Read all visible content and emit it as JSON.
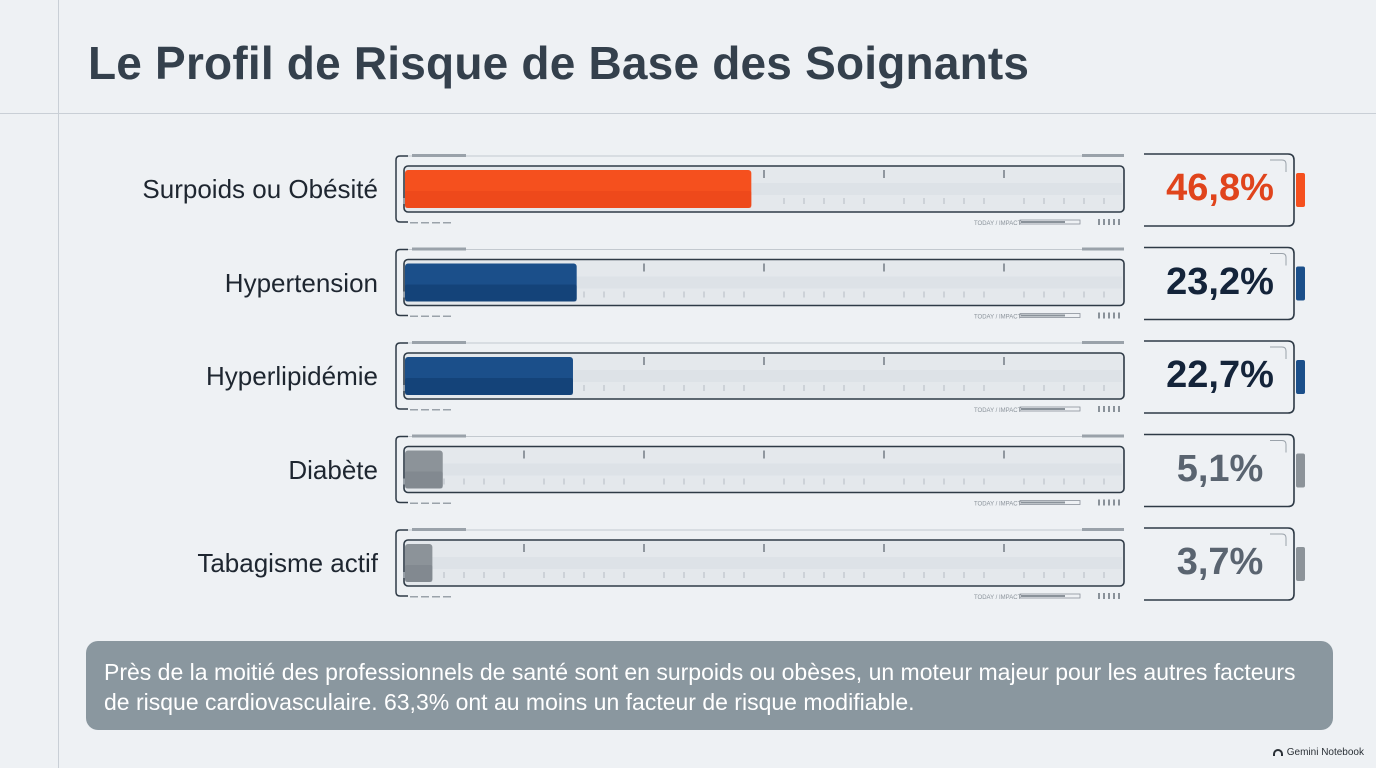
{
  "title": "Le Profil de Risque de Base des Soignants",
  "chart_data": {
    "type": "bar",
    "orientation": "horizontal",
    "categories": [
      "Surpoids ou Obésité",
      "Hypertension",
      "Hyperlipidémie",
      "Diabète",
      "Tabagisme actif"
    ],
    "values": [
      46.8,
      23.2,
      22.7,
      5.1,
      3.7
    ],
    "value_labels": [
      "46,8%",
      "23,2%",
      "22,7%",
      "5,1%",
      "3,7%"
    ],
    "xlim": [
      0,
      100
    ],
    "unit": "%",
    "title": "Le Profil de Risque de Base des Soignants",
    "colors": {
      "highlight": "#f5501e",
      "primary": "#1b4f8a",
      "muted": "#8c9399",
      "value_highlight": "#e0441c",
      "value_primary": "#14243a",
      "value_muted": "#5a6470"
    },
    "bar_styles": [
      "highlight",
      "primary",
      "primary",
      "muted",
      "muted"
    ]
  },
  "decor_text": "TODAY / IMPACT",
  "summary": "Près de la moitié des professionnels de santé sont en surpoids ou obèses, un moteur majeur pour les autres facteurs de risque cardiovasculaire. 63,3% ont au moins un facteur de risque modifiable.",
  "brand": "Gemini Notebook"
}
